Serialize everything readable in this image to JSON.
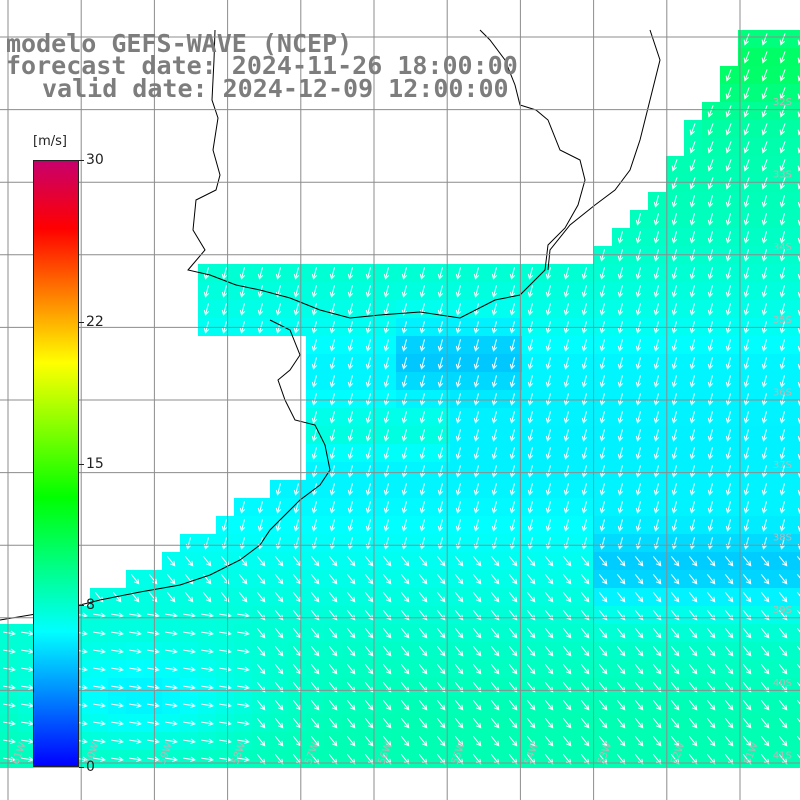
{
  "title": {
    "line1": "modelo GEFS-WAVE (NCEP)",
    "line2": "forecast date: 2024-11-26 18:00:00",
    "line3": "valid date: 2024-12-09 12:00:00"
  },
  "colorbar": {
    "unit": "[m/s]",
    "ticks": [
      {
        "label": "30",
        "value": 30
      },
      {
        "label": "22",
        "value": 22
      },
      {
        "label": "15",
        "value": 15
      },
      {
        "label": "8",
        "value": 8
      },
      {
        "label": "0",
        "value": 0
      }
    ],
    "min": 0,
    "max": 30,
    "stops": [
      "#0000ff",
      "#0080ff",
      "#00ffff",
      "#00ff80",
      "#00ff00",
      "#80ff00",
      "#ffff00",
      "#ff8000",
      "#ff0000",
      "#c8006c"
    ]
  },
  "map": {
    "latitude_labels": [
      "32S",
      "33S",
      "34S",
      "35S",
      "36S",
      "37S",
      "38S",
      "39S",
      "40S",
      "41S"
    ],
    "longitude_labels": [
      "61W",
      "60W",
      "59W",
      "58W",
      "57W",
      "56W",
      "55W",
      "54W",
      "53W",
      "52W",
      "51W"
    ],
    "land_color": "#ffffff",
    "grid_color": "#8c8c8c",
    "arrow_color": "#ffffff"
  }
}
